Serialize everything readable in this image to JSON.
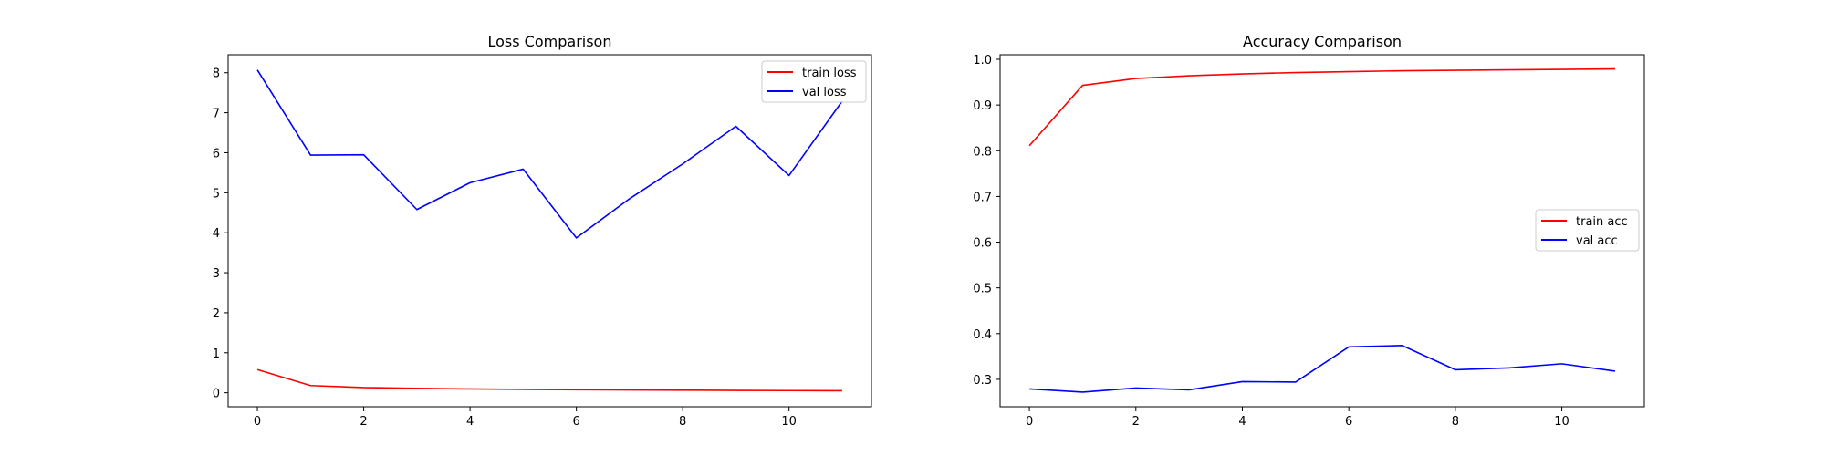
{
  "chart_data": [
    {
      "type": "line",
      "title": "Loss Comparison",
      "xlabel": "",
      "ylabel": "",
      "xlim": [
        -0.55,
        11.55
      ],
      "ylim": [
        -0.35,
        8.45
      ],
      "xticks": [
        0,
        2,
        4,
        6,
        8,
        10
      ],
      "yticks": [
        0,
        1,
        2,
        3,
        4,
        5,
        6,
        7,
        8
      ],
      "x": [
        0,
        1,
        2,
        3,
        4,
        5,
        6,
        7,
        8,
        9,
        10,
        11
      ],
      "series": [
        {
          "name": "train loss",
          "color": "#ff0000",
          "values": [
            0.58,
            0.18,
            0.13,
            0.11,
            0.095,
            0.085,
            0.075,
            0.07,
            0.065,
            0.06,
            0.055,
            0.05
          ]
        },
        {
          "name": "val loss",
          "color": "#0000ff",
          "values": [
            8.07,
            5.94,
            5.95,
            4.58,
            5.25,
            5.59,
            3.87,
            4.85,
            5.72,
            6.66,
            5.43,
            7.29
          ]
        }
      ],
      "legend": "top-right",
      "grid": false
    },
    {
      "type": "line",
      "title": "Accuracy Comparison",
      "xlabel": "",
      "ylabel": "",
      "xlim": [
        -0.55,
        11.55
      ],
      "ylim": [
        0.24,
        1.01
      ],
      "xticks": [
        0,
        2,
        4,
        6,
        8,
        10
      ],
      "yticks": [
        0.3,
        0.4,
        0.5,
        0.6,
        0.7,
        0.8,
        0.9,
        1.0
      ],
      "ytick_labels": [
        "0.3",
        "0.4",
        "0.5",
        "0.6",
        "0.7",
        "0.8",
        "0.9",
        "1.0"
      ],
      "x": [
        0,
        1,
        2,
        3,
        4,
        5,
        6,
        7,
        8,
        9,
        10,
        11
      ],
      "series": [
        {
          "name": "train acc",
          "color": "#ff0000",
          "values": [
            0.811,
            0.943,
            0.958,
            0.964,
            0.968,
            0.971,
            0.973,
            0.975,
            0.976,
            0.977,
            0.978,
            0.979
          ]
        },
        {
          "name": "val acc",
          "color": "#0000ff",
          "values": [
            0.279,
            0.272,
            0.281,
            0.277,
            0.295,
            0.294,
            0.371,
            0.374,
            0.321,
            0.325,
            0.334,
            0.318
          ]
        }
      ],
      "legend": "center-right",
      "grid": false
    }
  ]
}
